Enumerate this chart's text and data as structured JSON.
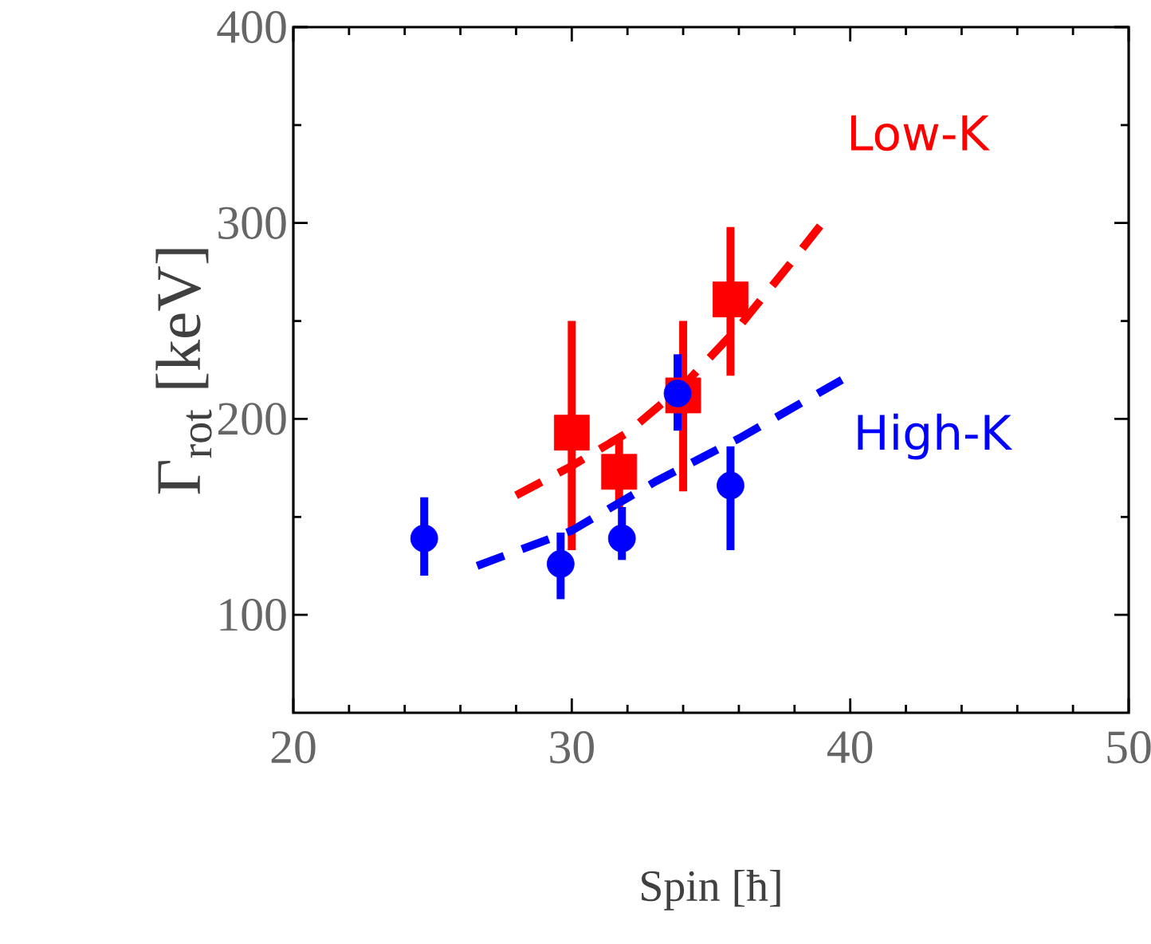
{
  "chart_data": {
    "type": "scatter",
    "xlabel": "Spin [ħ]",
    "ylabel": "Γ$_{rot}$ [keV]",
    "xlim": [
      20,
      50
    ],
    "ylim": [
      50,
      400
    ],
    "xticks": [
      20,
      30,
      40,
      50
    ],
    "yticks": [
      100,
      200,
      300,
      400
    ],
    "grid": false,
    "series": [
      {
        "color": "#ff0000",
        "marker": "square",
        "x": [
          30.0,
          31.7,
          34.0,
          35.7
        ],
        "values": [
          193,
          173,
          212,
          261
        ],
        "errors": [
          [
            133,
            250
          ],
          [
            155,
            191
          ],
          [
            163,
            250
          ],
          [
            222,
            298
          ]
        ]
      },
      {
        "color": "#0000ff",
        "marker": "circle",
        "x": [
          24.7,
          29.6,
          31.8,
          33.8,
          35.7
        ],
        "values": [
          139,
          126,
          139,
          213,
          166
        ],
        "errors": [
          [
            120,
            160
          ],
          [
            108,
            142
          ],
          [
            128,
            155
          ],
          [
            194,
            233
          ],
          [
            133,
            186
          ]
        ]
      },
      {
        "type": "line",
        "name": "Low-K",
        "color": "#ff0000",
        "line_style": "dashed",
        "marker": "none",
        "x": [
          28,
          30,
          32,
          34,
          36,
          38,
          39
        ],
        "values": [
          161,
          176,
          193,
          217,
          247,
          282,
          300
        ]
      },
      {
        "type": "line",
        "name": "High-K",
        "color": "#0000ff",
        "line_style": "dashed",
        "marker": "none",
        "x": [
          26.6,
          30,
          33,
          36,
          39.7
        ],
        "values": [
          125,
          143,
          168,
          190,
          220
        ]
      }
    ]
  }
}
